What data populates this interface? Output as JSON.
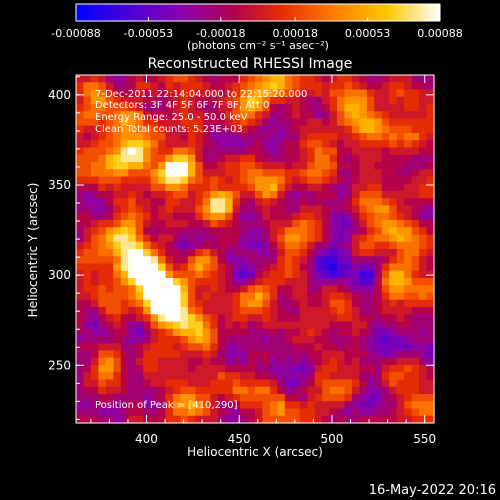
{
  "chart_data": {
    "type": "heatmap",
    "title": "Reconstructed RHESSI Image",
    "xlabel": "Heliocentric X (arcsec)",
    "ylabel": "Heliocentric Y (arcsec)",
    "xlim": [
      362,
      555
    ],
    "ylim": [
      218,
      411
    ],
    "x_ticks": [
      "400",
      "450",
      "500",
      "550"
    ],
    "x_tick_values": [
      400,
      450,
      500,
      550
    ],
    "y_ticks": [
      "250",
      "300",
      "350",
      "400"
    ],
    "y_tick_values": [
      250,
      300,
      350,
      400
    ],
    "colorbar": {
      "ticks": [
        "-0.00088",
        "-0.00053",
        "-0.00018",
        "0.00018",
        "0.00053",
        "0.00088"
      ],
      "tick_values": [
        -0.00088,
        -0.00053,
        -0.00018,
        0.00018,
        0.00053,
        0.00088
      ],
      "range": [
        -0.00088,
        0.00088
      ],
      "units_label": "(photons cm⁻² s⁻¹ asec⁻²)",
      "colormap": [
        "#0000ff",
        "#4a00d8",
        "#8800b0",
        "#b00050",
        "#e83000",
        "#ff8000",
        "#ffc800",
        "#ffffff"
      ]
    },
    "annotations": {
      "time": "7-Dec-2011 22:14:04.000 to 22:15:20.000",
      "detectors": "Detectors: 3F 4F 5F 6F 7F 8F, Att 0",
      "energy": "Energy Range: 25.0 - 50.0 keV",
      "clean": "Clean     Total counts: 5.23E+03",
      "peak": "Position of Peak = [410,290]"
    },
    "peak": [
      410,
      290
    ],
    "bright_regions": [
      {
        "x": 400,
        "y": 300,
        "level": 0.95
      },
      {
        "x": 410,
        "y": 290,
        "level": 1.0
      },
      {
        "x": 395,
        "y": 310,
        "level": 0.9
      },
      {
        "x": 415,
        "y": 280,
        "level": 0.85
      },
      {
        "x": 430,
        "y": 305,
        "level": 0.8
      },
      {
        "x": 385,
        "y": 320,
        "level": 0.75
      },
      {
        "x": 420,
        "y": 360,
        "level": 0.8
      },
      {
        "x": 410,
        "y": 355,
        "level": 0.75
      },
      {
        "x": 440,
        "y": 340,
        "level": 0.7
      },
      {
        "x": 395,
        "y": 370,
        "level": 0.85
      },
      {
        "x": 375,
        "y": 360,
        "level": 0.7
      },
      {
        "x": 390,
        "y": 385,
        "level": 0.65
      },
      {
        "x": 375,
        "y": 395,
        "level": 0.7
      },
      {
        "x": 455,
        "y": 395,
        "level": 0.75
      },
      {
        "x": 470,
        "y": 405,
        "level": 0.6
      },
      {
        "x": 510,
        "y": 395,
        "level": 0.75
      },
      {
        "x": 520,
        "y": 380,
        "level": 0.65
      },
      {
        "x": 495,
        "y": 365,
        "level": 0.65
      },
      {
        "x": 545,
        "y": 385,
        "level": 0.55
      },
      {
        "x": 465,
        "y": 350,
        "level": 0.6
      },
      {
        "x": 480,
        "y": 320,
        "level": 0.55
      },
      {
        "x": 525,
        "y": 335,
        "level": 0.55
      },
      {
        "x": 540,
        "y": 320,
        "level": 0.6
      },
      {
        "x": 535,
        "y": 295,
        "level": 0.55
      },
      {
        "x": 505,
        "y": 280,
        "level": 0.45
      },
      {
        "x": 460,
        "y": 290,
        "level": 0.55
      },
      {
        "x": 430,
        "y": 265,
        "level": 0.5
      },
      {
        "x": 445,
        "y": 240,
        "level": 0.45
      },
      {
        "x": 420,
        "y": 230,
        "level": 0.65
      },
      {
        "x": 500,
        "y": 235,
        "level": 0.45
      },
      {
        "x": 540,
        "y": 245,
        "level": 0.5
      },
      {
        "x": 380,
        "y": 250,
        "level": 0.45
      },
      {
        "x": 545,
        "y": 225,
        "level": 0.5
      },
      {
        "x": 470,
        "y": 225,
        "level": 0.4
      }
    ],
    "dark_regions": [
      {
        "x": 455,
        "y": 300,
        "level": 0.8
      },
      {
        "x": 500,
        "y": 305,
        "level": 0.7
      },
      {
        "x": 375,
        "y": 270,
        "level": 0.7
      },
      {
        "x": 450,
        "y": 255,
        "level": 0.7
      },
      {
        "x": 520,
        "y": 300,
        "level": 0.6
      },
      {
        "x": 530,
        "y": 265,
        "level": 0.65
      },
      {
        "x": 470,
        "y": 375,
        "level": 0.5
      },
      {
        "x": 400,
        "y": 230,
        "level": 0.5
      }
    ]
  },
  "footer": {
    "timestamp": "16-May-2022 20:16"
  }
}
